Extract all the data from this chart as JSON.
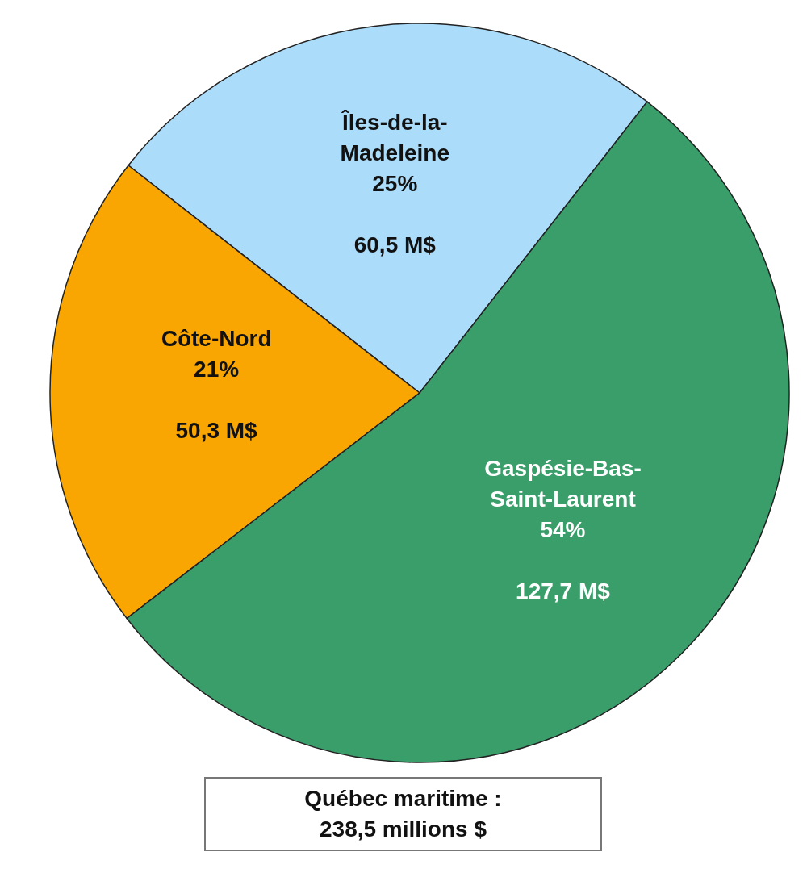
{
  "chart_data": {
    "type": "pie",
    "categories": [
      "Îles-de-la-Madeleine",
      "Côte-Nord",
      "Gaspésie-Bas-Saint-Laurent"
    ],
    "values": [
      25,
      21,
      54
    ],
    "colors": [
      "#abdcf9",
      "#f9a602",
      "#3a9e6b"
    ],
    "value_labels": [
      "25%\n\n60,5 M$",
      "21%\n\n50,3 M$",
      "54%\n\n127,7 M$"
    ],
    "annotations": [
      "Québec maritime :\n238,5 millions $"
    ]
  }
}
